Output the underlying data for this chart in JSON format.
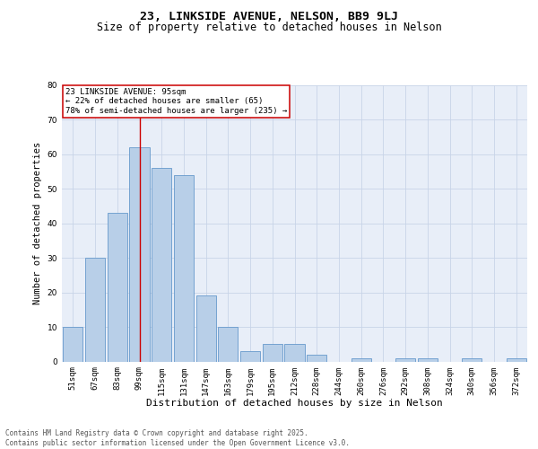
{
  "title": "23, LINKSIDE AVENUE, NELSON, BB9 9LJ",
  "subtitle": "Size of property relative to detached houses in Nelson",
  "xlabel": "Distribution of detached houses by size in Nelson",
  "ylabel": "Number of detached properties",
  "bin_labels": [
    "51sqm",
    "67sqm",
    "83sqm",
    "99sqm",
    "115sqm",
    "131sqm",
    "147sqm",
    "163sqm",
    "179sqm",
    "195sqm",
    "212sqm",
    "228sqm",
    "244sqm",
    "260sqm",
    "276sqm",
    "292sqm",
    "308sqm",
    "324sqm",
    "340sqm",
    "356sqm",
    "372sqm"
  ],
  "bar_values": [
    10,
    30,
    43,
    62,
    56,
    54,
    19,
    10,
    3,
    5,
    5,
    2,
    0,
    1,
    0,
    1,
    1,
    0,
    1,
    0,
    1
  ],
  "bar_color": "#b8cfe8",
  "bar_edge_color": "#6699cc",
  "grid_color": "#c8d4e8",
  "background_color": "#e8eef8",
  "red_line_index": 3,
  "annotation_text": "23 LINKSIDE AVENUE: 95sqm\n← 22% of detached houses are smaller (65)\n78% of semi-detached houses are larger (235) →",
  "annotation_box_color": "#ffffff",
  "annotation_box_edge": "#cc0000",
  "ylim": [
    0,
    80
  ],
  "yticks": [
    0,
    10,
    20,
    30,
    40,
    50,
    60,
    70,
    80
  ],
  "footer_text": "Contains HM Land Registry data © Crown copyright and database right 2025.\nContains public sector information licensed under the Open Government Licence v3.0.",
  "title_fontsize": 9.5,
  "subtitle_fontsize": 8.5,
  "xlabel_fontsize": 8,
  "ylabel_fontsize": 7.5,
  "tick_fontsize": 6.5,
  "annotation_fontsize": 6.5,
  "footer_fontsize": 5.5
}
